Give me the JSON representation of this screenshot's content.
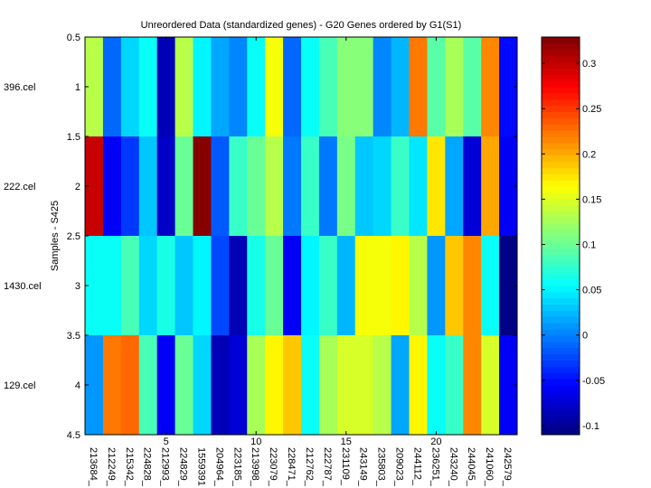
{
  "chart_data": {
    "type": "heatmap",
    "title": "Unreordered Data (standardized genes) - G20 Genes ordered by G1(S1)",
    "xlabel": "",
    "ylabel": "Samples - S425",
    "x_ticks": [
      "5",
      "10",
      "15",
      "20"
    ],
    "x_tick_values": [
      5,
      10,
      15,
      20
    ],
    "y_ticks": [
      "0.5",
      "1",
      "1.5",
      "2",
      "2.5",
      "3",
      "3.5",
      "4",
      "4.5"
    ],
    "y_tick_values": [
      0.5,
      1,
      1.5,
      2,
      2.5,
      3,
      3.5,
      4,
      4.5
    ],
    "xlim": [
      0.5,
      24.5
    ],
    "ylim": [
      0.5,
      4.5
    ],
    "columns": [
      "213684_",
      "212249_",
      "215342_",
      "224828_",
      "212993_",
      "224829_",
      "1559391",
      "204964_",
      "223185_",
      "213998_",
      "223079_",
      "228471_",
      "212762_",
      "222787_",
      "231109_",
      "243149_",
      "235803_",
      "209023_",
      "244112_",
      "236251_",
      "243240_",
      "244045_",
      "241060_",
      "242579_"
    ],
    "rows": [
      "396.cel",
      "222.cel",
      "1430.cel",
      "129.cel"
    ],
    "values": [
      [
        0.135,
        -0.01,
        0.035,
        0.055,
        -0.085,
        0.135,
        0.05,
        0.02,
        0.0,
        0.055,
        0.16,
        -0.01,
        0.055,
        0.085,
        0.11,
        0.115,
        0.005,
        0.025,
        0.22,
        0.09,
        0.13,
        0.09,
        0.215,
        -0.055
      ],
      [
        0.3,
        -0.06,
        -0.03,
        0.03,
        -0.08,
        0.1,
        0.329,
        -0.02,
        0.08,
        0.1,
        0.135,
        -0.005,
        0.08,
        -0.005,
        0.105,
        0.033,
        0.035,
        0.08,
        0.045,
        0.175,
        0.015,
        -0.075,
        0.2,
        -0.06
      ],
      [
        0.055,
        0.055,
        0.085,
        0.04,
        0.065,
        0.03,
        0.05,
        -0.025,
        -0.085,
        0.065,
        0.1,
        -0.06,
        0.05,
        0.08,
        0.025,
        0.16,
        0.16,
        0.17,
        0.135,
        0.013,
        0.19,
        0.215,
        0.055,
        -0.11
      ],
      [
        0.013,
        0.22,
        0.23,
        0.085,
        -0.06,
        0.1,
        0.04,
        -0.085,
        -0.07,
        0.13,
        0.165,
        0.19,
        0.055,
        0.13,
        0.15,
        0.145,
        0.135,
        0.015,
        0.17,
        0.06,
        0.08,
        0.215,
        0.145,
        -0.06
      ]
    ],
    "colormap": "jet",
    "clim": [
      -0.11,
      0.329
    ],
    "colorbar": {
      "ticks": [
        0.3,
        0.25,
        0.2,
        0.15,
        0.1,
        0.05,
        0,
        -0.05,
        -0.1
      ],
      "tick_labels": [
        "0.3",
        "0.25",
        "0.2",
        "0.15",
        "0.1",
        "0.05",
        "0",
        "-0.05",
        "-0.1"
      ],
      "placement": "right"
    },
    "grid": false
  }
}
